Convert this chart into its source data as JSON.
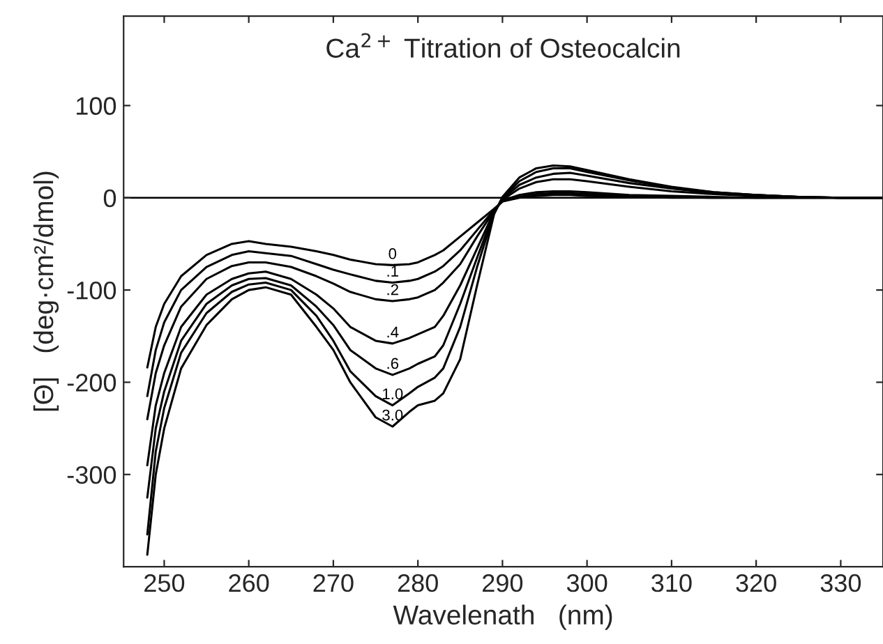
{
  "chart_data": {
    "type": "line",
    "title": "Ca$^{2+}$ Titration of Osteocalcin",
    "xlabel": "Wavelenath   (nm)",
    "ylabel": "[Θ]   (deg·cm²/dmol)",
    "x": [
      248,
      249,
      250,
      252,
      255,
      258,
      260,
      262,
      265,
      268,
      270,
      272,
      275,
      277,
      279,
      280,
      282,
      283,
      285,
      287,
      289,
      290,
      292,
      294,
      296,
      298,
      300,
      305,
      310,
      315,
      320,
      325,
      330,
      335
    ],
    "series": [
      {
        "name": "0",
        "color": "#000000",
        "values": [
          -184,
          -140,
          -115,
          -85,
          -62,
          -50,
          -47,
          -50,
          -53,
          -58,
          -62,
          -67,
          -72,
          -73,
          -72,
          -70,
          -62,
          -57,
          -42,
          -27,
          -12,
          -4,
          0,
          2,
          3,
          3,
          2,
          1,
          0,
          0,
          0,
          0,
          0,
          0
        ]
      },
      {
        "name": ".1",
        "color": "#000000",
        "values": [
          -215,
          -165,
          -135,
          -100,
          -75,
          -62,
          -58,
          -60,
          -63,
          -72,
          -78,
          -83,
          -90,
          -92,
          -90,
          -88,
          -80,
          -74,
          -57,
          -35,
          -13,
          -4,
          1,
          4,
          5,
          5,
          4,
          2,
          1,
          0,
          0,
          0,
          0,
          0
        ]
      },
      {
        "name": ".2",
        "color": "#000000",
        "values": [
          -240,
          -190,
          -160,
          -118,
          -88,
          -74,
          -70,
          -70,
          -75,
          -85,
          -93,
          -102,
          -110,
          -112,
          -110,
          -108,
          -100,
          -92,
          -72,
          -42,
          -14,
          -3,
          3,
          6,
          7,
          7,
          6,
          3,
          2,
          1,
          0,
          0,
          0,
          0
        ]
      },
      {
        "name": ".4",
        "color": "#000000",
        "values": [
          -290,
          -225,
          -190,
          -140,
          -105,
          -88,
          -82,
          -80,
          -88,
          -105,
          -120,
          -140,
          -155,
          -158,
          -152,
          -148,
          -140,
          -128,
          -95,
          -55,
          -15,
          -2,
          10,
          17,
          20,
          20,
          18,
          12,
          7,
          4,
          2,
          1,
          0,
          0
        ]
      },
      {
        "name": ".6",
        "color": "#000000",
        "values": [
          -325,
          -250,
          -210,
          -155,
          -115,
          -95,
          -88,
          -87,
          -95,
          -118,
          -138,
          -165,
          -185,
          -192,
          -185,
          -180,
          -172,
          -160,
          -115,
          -65,
          -16,
          -1,
          14,
          22,
          26,
          27,
          24,
          16,
          10,
          5,
          3,
          1,
          0,
          0
        ]
      },
      {
        "name": "1.0",
        "color": "#000000",
        "values": [
          -365,
          -275,
          -228,
          -168,
          -125,
          -102,
          -94,
          -92,
          -100,
          -128,
          -155,
          -188,
          -215,
          -225,
          -212,
          -205,
          -195,
          -185,
          -140,
          -75,
          -17,
          0,
          18,
          28,
          32,
          32,
          28,
          19,
          11,
          6,
          3,
          1,
          0,
          0
        ]
      },
      {
        "name": "3.0",
        "color": "#000000",
        "values": [
          -387,
          -300,
          -250,
          -185,
          -138,
          -110,
          -100,
          -97,
          -105,
          -140,
          -165,
          -200,
          -238,
          -248,
          -232,
          -225,
          -220,
          -212,
          -175,
          -95,
          -18,
          1,
          22,
          32,
          35,
          34,
          30,
          20,
          12,
          6,
          3,
          1,
          0,
          0
        ]
      }
    ],
    "xlim": [
      245.2,
      335
    ],
    "ylim": [
      -400,
      197
    ],
    "xticks": [
      250,
      260,
      270,
      280,
      290,
      300,
      310,
      320,
      330
    ],
    "yticks": [
      -300,
      -200,
      -100,
      0,
      100
    ],
    "ref_lines": [
      {
        "axis": "y",
        "value": 0,
        "color": "#000000"
      }
    ],
    "grid": false,
    "legend": false,
    "marker": "none",
    "line_style": "solid"
  }
}
